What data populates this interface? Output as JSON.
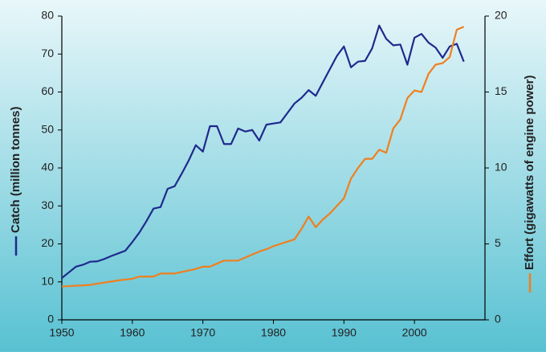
{
  "chart_data": {
    "type": "line",
    "x": [
      1950,
      1951,
      1952,
      1953,
      1954,
      1955,
      1956,
      1957,
      1958,
      1959,
      1960,
      1961,
      1962,
      1963,
      1964,
      1965,
      1966,
      1967,
      1968,
      1969,
      1970,
      1971,
      1972,
      1973,
      1974,
      1975,
      1976,
      1977,
      1978,
      1979,
      1980,
      1981,
      1982,
      1983,
      1984,
      1985,
      1986,
      1987,
      1988,
      1989,
      1990,
      1991,
      1992,
      1993,
      1994,
      1995,
      1996,
      1997,
      1998,
      1999,
      2000,
      2001,
      2002,
      2003,
      2004,
      2005,
      2006,
      2007
    ],
    "series": [
      {
        "name": "Catch (million tonnes)",
        "color": "#1f2a8c",
        "values": [
          11,
          12.5,
          14,
          14.5,
          15.3,
          15.4,
          16,
          16.8,
          17.5,
          18.2,
          20.5,
          23,
          26,
          29.3,
          29.7,
          34.5,
          35.2,
          38.5,
          42,
          46,
          44.3,
          51,
          51,
          46.3,
          46.3,
          50.4,
          49.6,
          50,
          47.2,
          51.4,
          51.7,
          52,
          54.5,
          57,
          58.5,
          60.5,
          59,
          62.5,
          66,
          69.5,
          72,
          66.5,
          68,
          68.2,
          71.5,
          77.5,
          74,
          72.3,
          72.5,
          67.2,
          74.3,
          75.3,
          73,
          71.7,
          69,
          72,
          72.7,
          68
        ]
      },
      {
        "name": "Effort (gigawatts of engine power)",
        "color": "#f07f1e",
        "axis": "y2",
        "values": [
          2.2,
          2.22,
          2.25,
          2.27,
          2.3,
          2.38,
          2.45,
          2.52,
          2.6,
          2.65,
          2.7,
          2.85,
          2.85,
          2.85,
          3.05,
          3.05,
          3.05,
          3.15,
          3.25,
          3.35,
          3.5,
          3.5,
          3.7,
          3.9,
          3.9,
          3.9,
          4.1,
          4.3,
          4.5,
          4.65,
          4.85,
          5.0,
          5.15,
          5.3,
          6.0,
          6.8,
          6.1,
          6.6,
          7.0,
          7.5,
          8.0,
          9.3,
          10.0,
          10.6,
          10.6,
          11.2,
          11.0,
          12.6,
          13.2,
          14.6,
          15.1,
          15.0,
          16.2,
          16.8,
          16.9,
          17.3,
          19.1,
          19.3
        ]
      }
    ],
    "xlim": [
      1950,
      2010
    ],
    "xticks": [
      1950,
      1960,
      1970,
      1980,
      1990,
      2000
    ],
    "ylim": [
      0,
      80
    ],
    "yticks": [
      0,
      10,
      20,
      30,
      40,
      50,
      60,
      70,
      80
    ],
    "y2lim": [
      0,
      20
    ],
    "y2ticks": [
      0,
      5,
      10,
      15,
      20
    ]
  }
}
